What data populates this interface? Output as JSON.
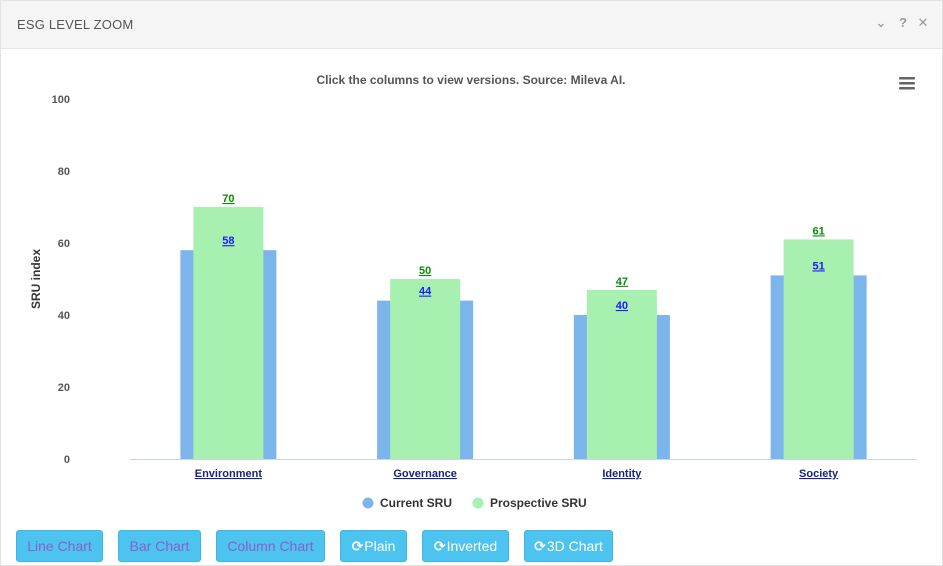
{
  "panel": {
    "title": "ESG LEVEL ZOOM",
    "icons": [
      "chevron-down-icon",
      "help-icon",
      "close-icon"
    ],
    "icon_glyphs": {
      "chevron": "⌄",
      "help": "?",
      "close": "✕"
    }
  },
  "chart_data": {
    "type": "bar",
    "subtitle": "Click the columns to view versions. Source: Mileva AI.",
    "ylabel": "SRU index",
    "xlabel": "",
    "ylim": [
      0,
      100
    ],
    "yticks": [
      0,
      20,
      40,
      60,
      80,
      100
    ],
    "grid": false,
    "categories": [
      "Environment",
      "Governance",
      "Identity",
      "Society"
    ],
    "series": [
      {
        "name": "Current SRU",
        "values": [
          58,
          44,
          40,
          51
        ],
        "color": "#7cb5ec",
        "label_color": "#1a1aff"
      },
      {
        "name": "Prospective SRU",
        "values": [
          70,
          50,
          47,
          61
        ],
        "color": "#a8f0b0",
        "label_color": "#0a8a0a"
      }
    ],
    "legend_placement": "bottom-center",
    "axis_label_color": "#1a237e"
  },
  "buttons": {
    "line": "Line Chart",
    "bar": "Bar Chart",
    "column": "Column Chart",
    "plain": "Plain",
    "inverted": "Inverted",
    "three_d": "3D Chart",
    "refresh_glyph": "⟳"
  }
}
